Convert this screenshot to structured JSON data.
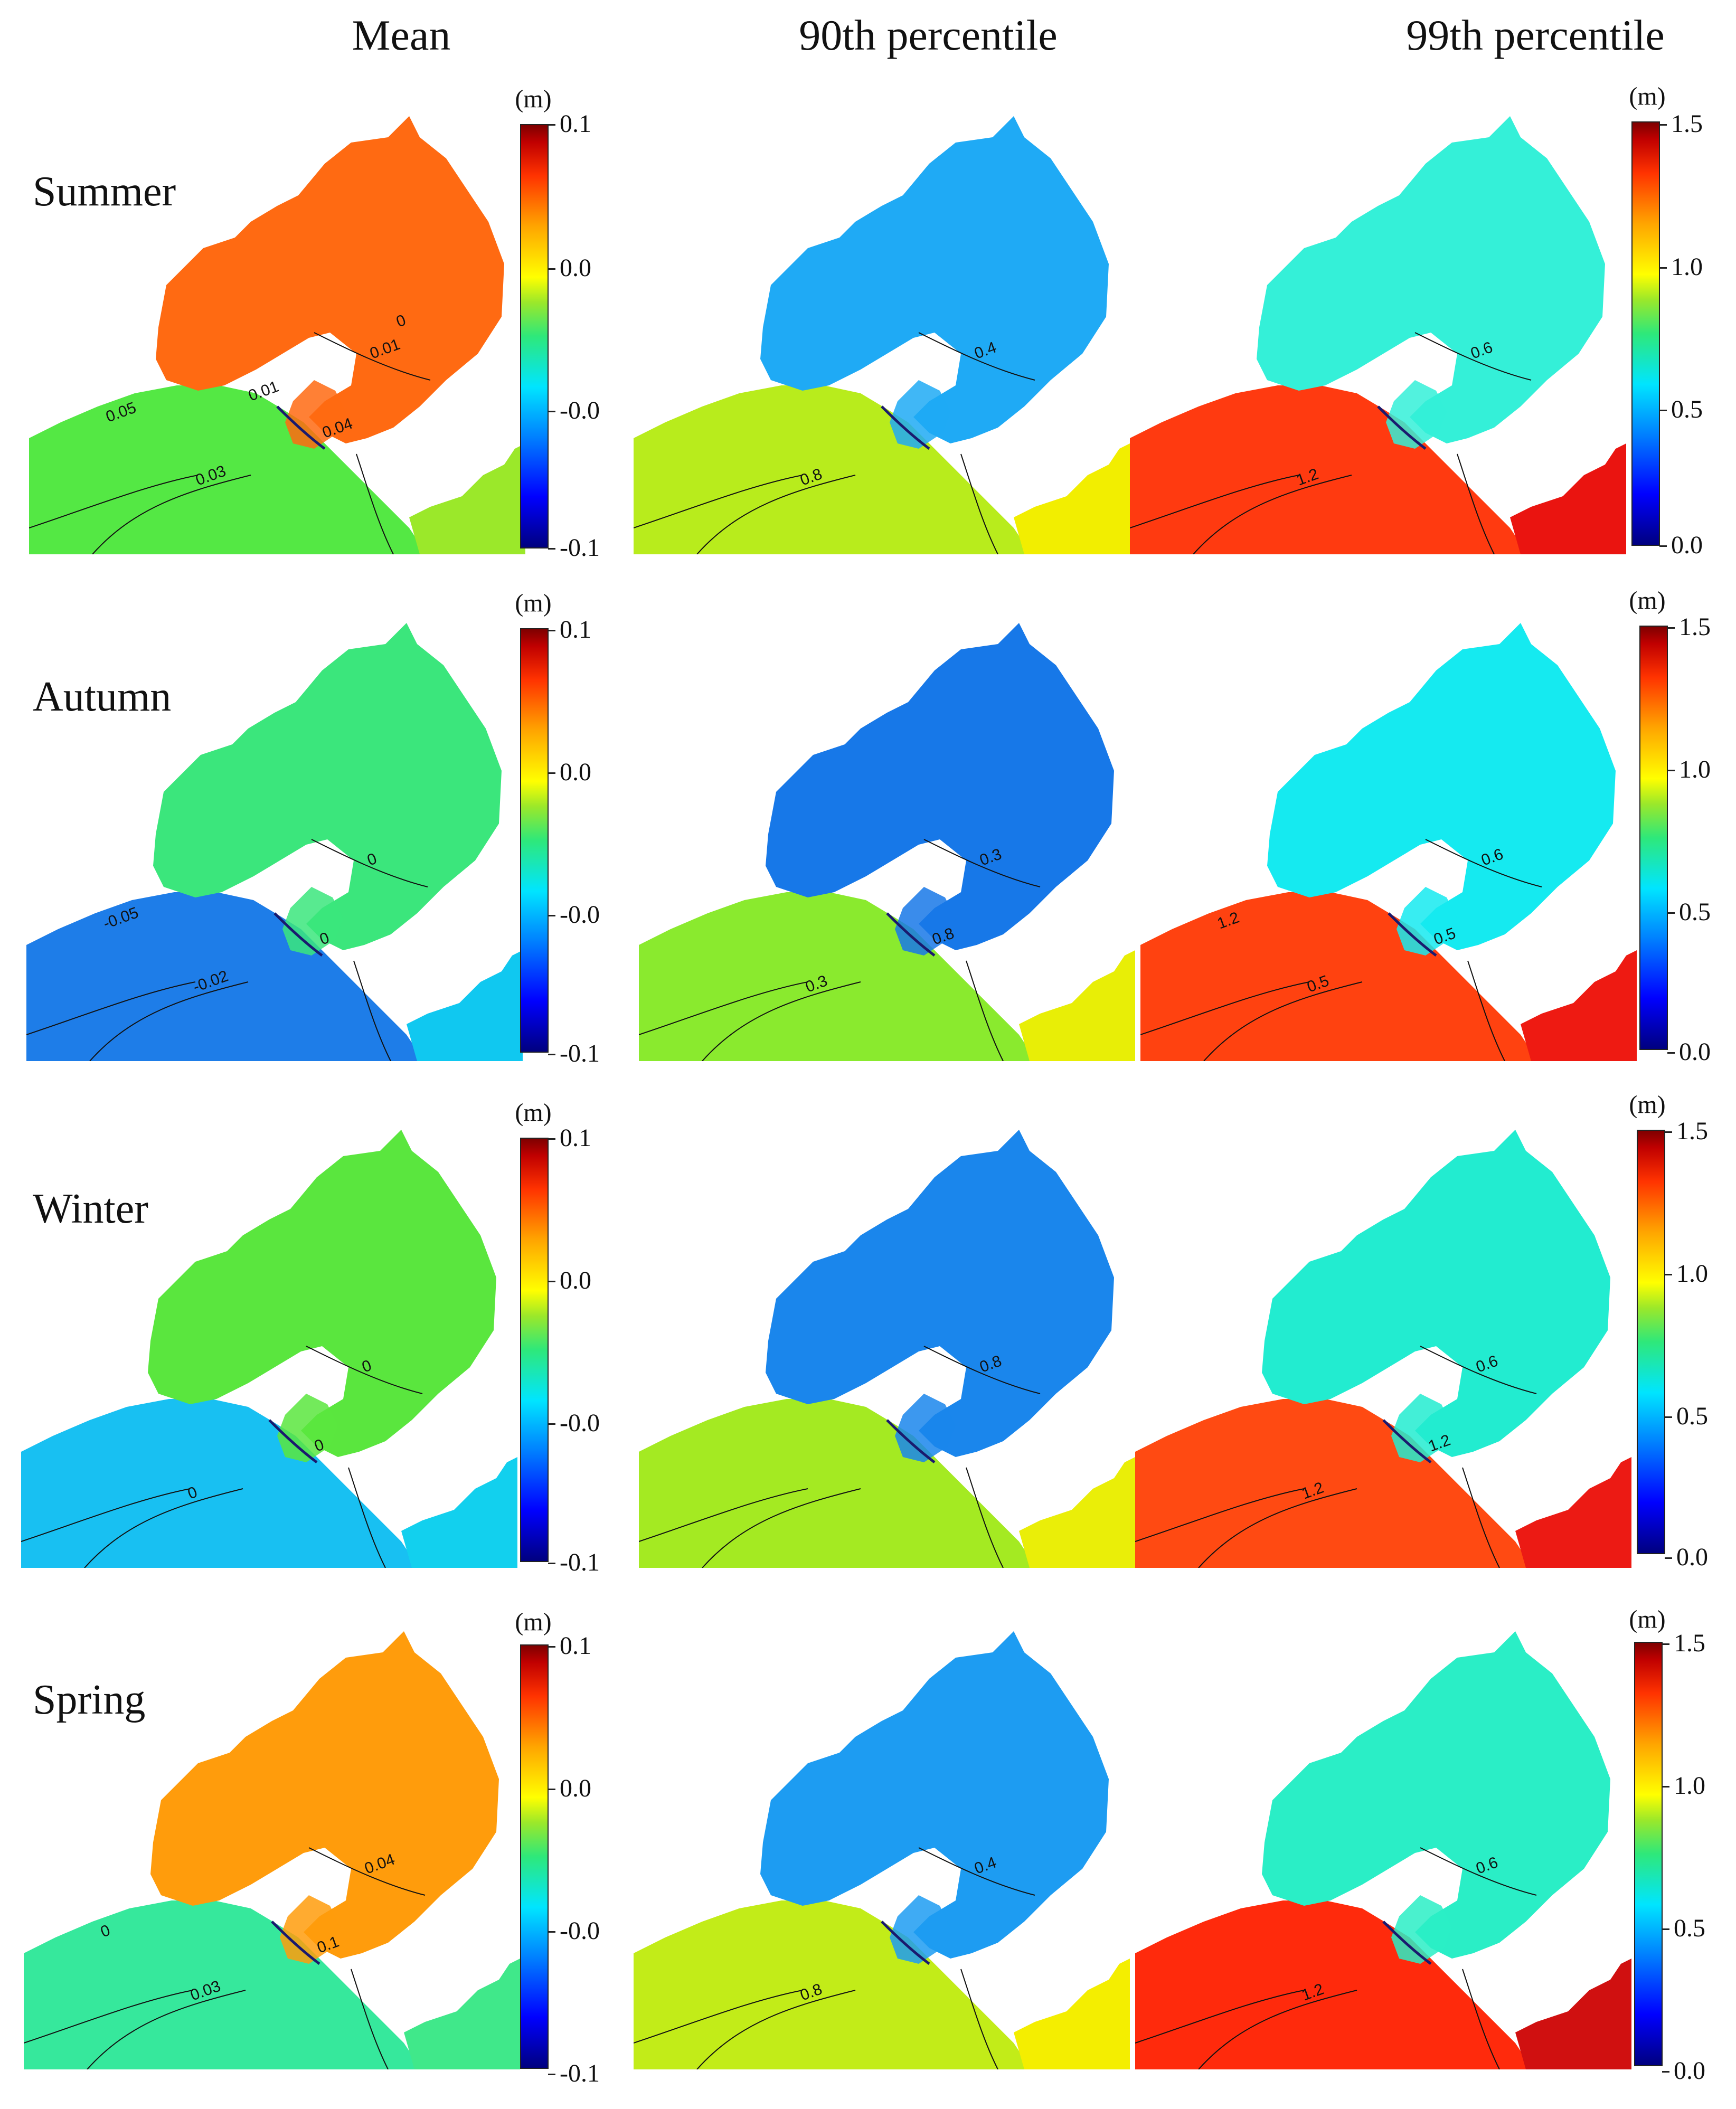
{
  "columns": [
    "Mean",
    "90th percentile",
    "99th percentile"
  ],
  "rows": [
    "Summer",
    "Autumn",
    "Winter",
    "Spring"
  ],
  "units": "(m)",
  "colorbars": {
    "mean": {
      "max": "0.1",
      "upper": "0.0",
      "lower": "-0.0",
      "min": "-0.1",
      "range": [
        -0.1,
        0.1
      ]
    },
    "p99": {
      "max": "1.5",
      "upper": "1.0",
      "lower": "0.5",
      "min": "0.0",
      "range": [
        0.0,
        1.5
      ]
    }
  },
  "panels": [
    {
      "row": "Summer",
      "column": "Mean",
      "bay_color": "#ff6a12",
      "shelf_color": "#54e844",
      "east_color": "#9be82a",
      "contour_labels": [
        "0.01",
        "0.03",
        "0.04",
        "0.05",
        "0.01",
        "0"
      ]
    },
    {
      "row": "Summer",
      "column": "90th percentile",
      "bay_color": "#1faaf5",
      "shelf_color": "#b8ec1c",
      "east_color": "#f2ee00",
      "contour_labels": [
        "0.4",
        "0.8"
      ]
    },
    {
      "row": "Summer",
      "column": "99th percentile",
      "bay_color": "#34f0d8",
      "shelf_color": "#ff3a10",
      "east_color": "#ea1410",
      "contour_labels": [
        "0.6",
        "1.2"
      ]
    },
    {
      "row": "Autumn",
      "column": "Mean",
      "bay_color": "#3be67c",
      "shelf_color": "#1e7de8",
      "east_color": "#10c8f0",
      "contour_labels": [
        "0",
        "-0.02",
        "0",
        "-0.05"
      ]
    },
    {
      "row": "Autumn",
      "column": "90th percentile",
      "bay_color": "#1778e8",
      "shelf_color": "#8aea2e",
      "east_color": "#e8ee06",
      "contour_labels": [
        "0.3",
        "0.3",
        "0.8"
      ]
    },
    {
      "row": "Autumn",
      "column": "99th percentile",
      "bay_color": "#15eaf0",
      "shelf_color": "#ff4210",
      "east_color": "#ee1a12",
      "contour_labels": [
        "0.6",
        "0.5",
        "0.5",
        "1.2"
      ]
    },
    {
      "row": "Winter",
      "column": "Mean",
      "bay_color": "#5ae63e",
      "shelf_color": "#18c0f2",
      "east_color": "#12d0ee",
      "contour_labels": [
        "0",
        "0",
        "0"
      ]
    },
    {
      "row": "Winter",
      "column": "90th percentile",
      "bay_color": "#1a86ec",
      "shelf_color": "#a4ea22",
      "east_color": "#eaee08",
      "contour_labels": [
        "0.8"
      ]
    },
    {
      "row": "Winter",
      "column": "99th percentile",
      "bay_color": "#22ecd0",
      "shelf_color": "#ff4a12",
      "east_color": "#ec1a14",
      "contour_labels": [
        "0.6",
        "1.2",
        "1.2"
      ]
    },
    {
      "row": "Spring",
      "column": "Mean",
      "bay_color": "#ff9c0c",
      "shelf_color": "#36e89c",
      "east_color": "#40e88a",
      "contour_labels": [
        "0.04",
        "0.03",
        "0.1",
        "0"
      ]
    },
    {
      "row": "Spring",
      "column": "90th percentile",
      "bay_color": "#1d9cf2",
      "shelf_color": "#c2ec18",
      "east_color": "#f4ee00",
      "contour_labels": [
        "0.4",
        "0.8"
      ]
    },
    {
      "row": "Spring",
      "column": "99th percentile",
      "bay_color": "#2aeec6",
      "shelf_color": "#ff2a0c",
      "east_color": "#d01010",
      "contour_labels": [
        "0.6",
        "1.2"
      ]
    }
  ]
}
